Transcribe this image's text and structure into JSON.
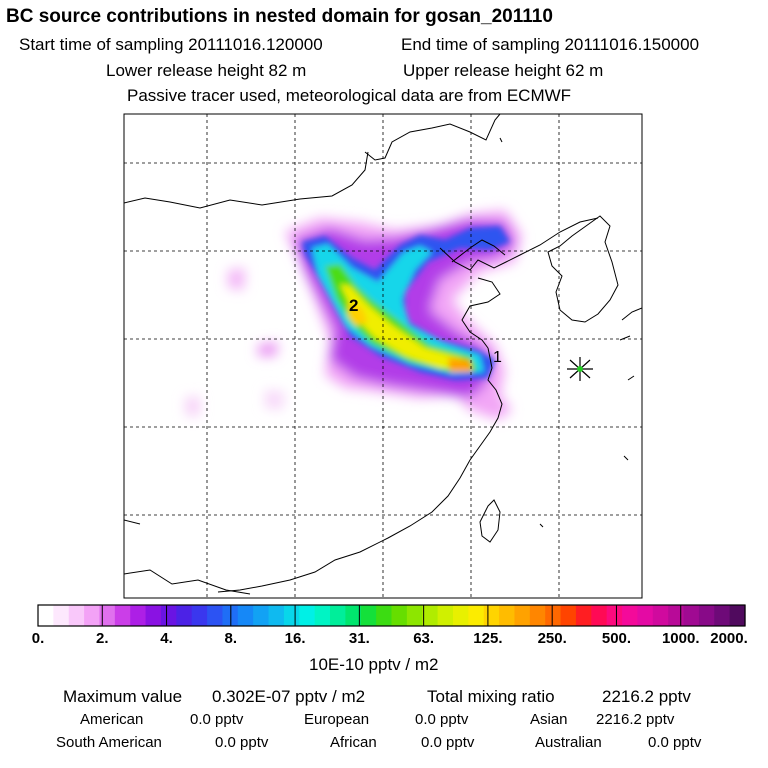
{
  "header": {
    "title": "BC  source contributions in nested domain for gosan_201110",
    "start_time": "Start time of sampling 20111016.120000",
    "end_time": "End time of sampling 20111016.150000",
    "lower_release": "Lower release height   82 m",
    "upper_release": "Upper release height   62 m",
    "note": "Passive tracer used, meteorological data are from ECMWF"
  },
  "chart_data": {
    "type": "heatmap",
    "description_units": "10E-10 pptv / m2",
    "colorbar": {
      "tick_labels": [
        "0.",
        "2.",
        "4.",
        "8.",
        "16.",
        "31.",
        "63.",
        "125.",
        "250.",
        "500.",
        "1000.",
        "2000."
      ],
      "colors": [
        "#ffffff",
        "#fde8fd",
        "#f9c8fa",
        "#f3a2f6",
        "#e070ee",
        "#cb3ee8",
        "#ad1fe6",
        "#8a12e3",
        "#6a14e3",
        "#4c22e6",
        "#3a37ee",
        "#2c53f3",
        "#1f6ef6",
        "#1688f7",
        "#12a2f4",
        "#0fbaf0",
        "#08d6ea",
        "#00f0e6",
        "#00f4c4",
        "#00ee9a",
        "#00e66e",
        "#14e03a",
        "#3cdc12",
        "#66de00",
        "#8de600",
        "#b0ec00",
        "#d0f000",
        "#e8f000",
        "#fcec00",
        "#ffd400",
        "#ffbc00",
        "#ffa200",
        "#ff8600",
        "#ff6800",
        "#ff4400",
        "#ff1e22",
        "#ff0a55",
        "#fc0a7e",
        "#f40a9a",
        "#e40aa4",
        "#d00a9e",
        "#b80a98",
        "#a00a92",
        "#880a88",
        "#6e0a78",
        "#500a5e"
      ]
    },
    "markers": [
      {
        "label": "1",
        "role": "release site"
      },
      {
        "label": "2",
        "role": "plume maximum"
      }
    ],
    "receptor": "gosan",
    "map": {
      "grid": "dashed",
      "basemap": "East Asia coastline"
    }
  },
  "summary": {
    "max_label": "Maximum value",
    "max_value": "0.302E-07 pptv / m2",
    "total_label": "Total mixing ratio",
    "total_value": "2216.2 pptv"
  },
  "regions": [
    {
      "name": "American",
      "value": "0.0 pptv"
    },
    {
      "name": "European",
      "value": "0.0 pptv"
    },
    {
      "name": "Asian",
      "value": "2216.2 pptv"
    },
    {
      "name": "South American",
      "value": "0.0 pptv"
    },
    {
      "name": "African",
      "value": "0.0 pptv"
    },
    {
      "name": "Australian",
      "value": "0.0 pptv"
    }
  ]
}
